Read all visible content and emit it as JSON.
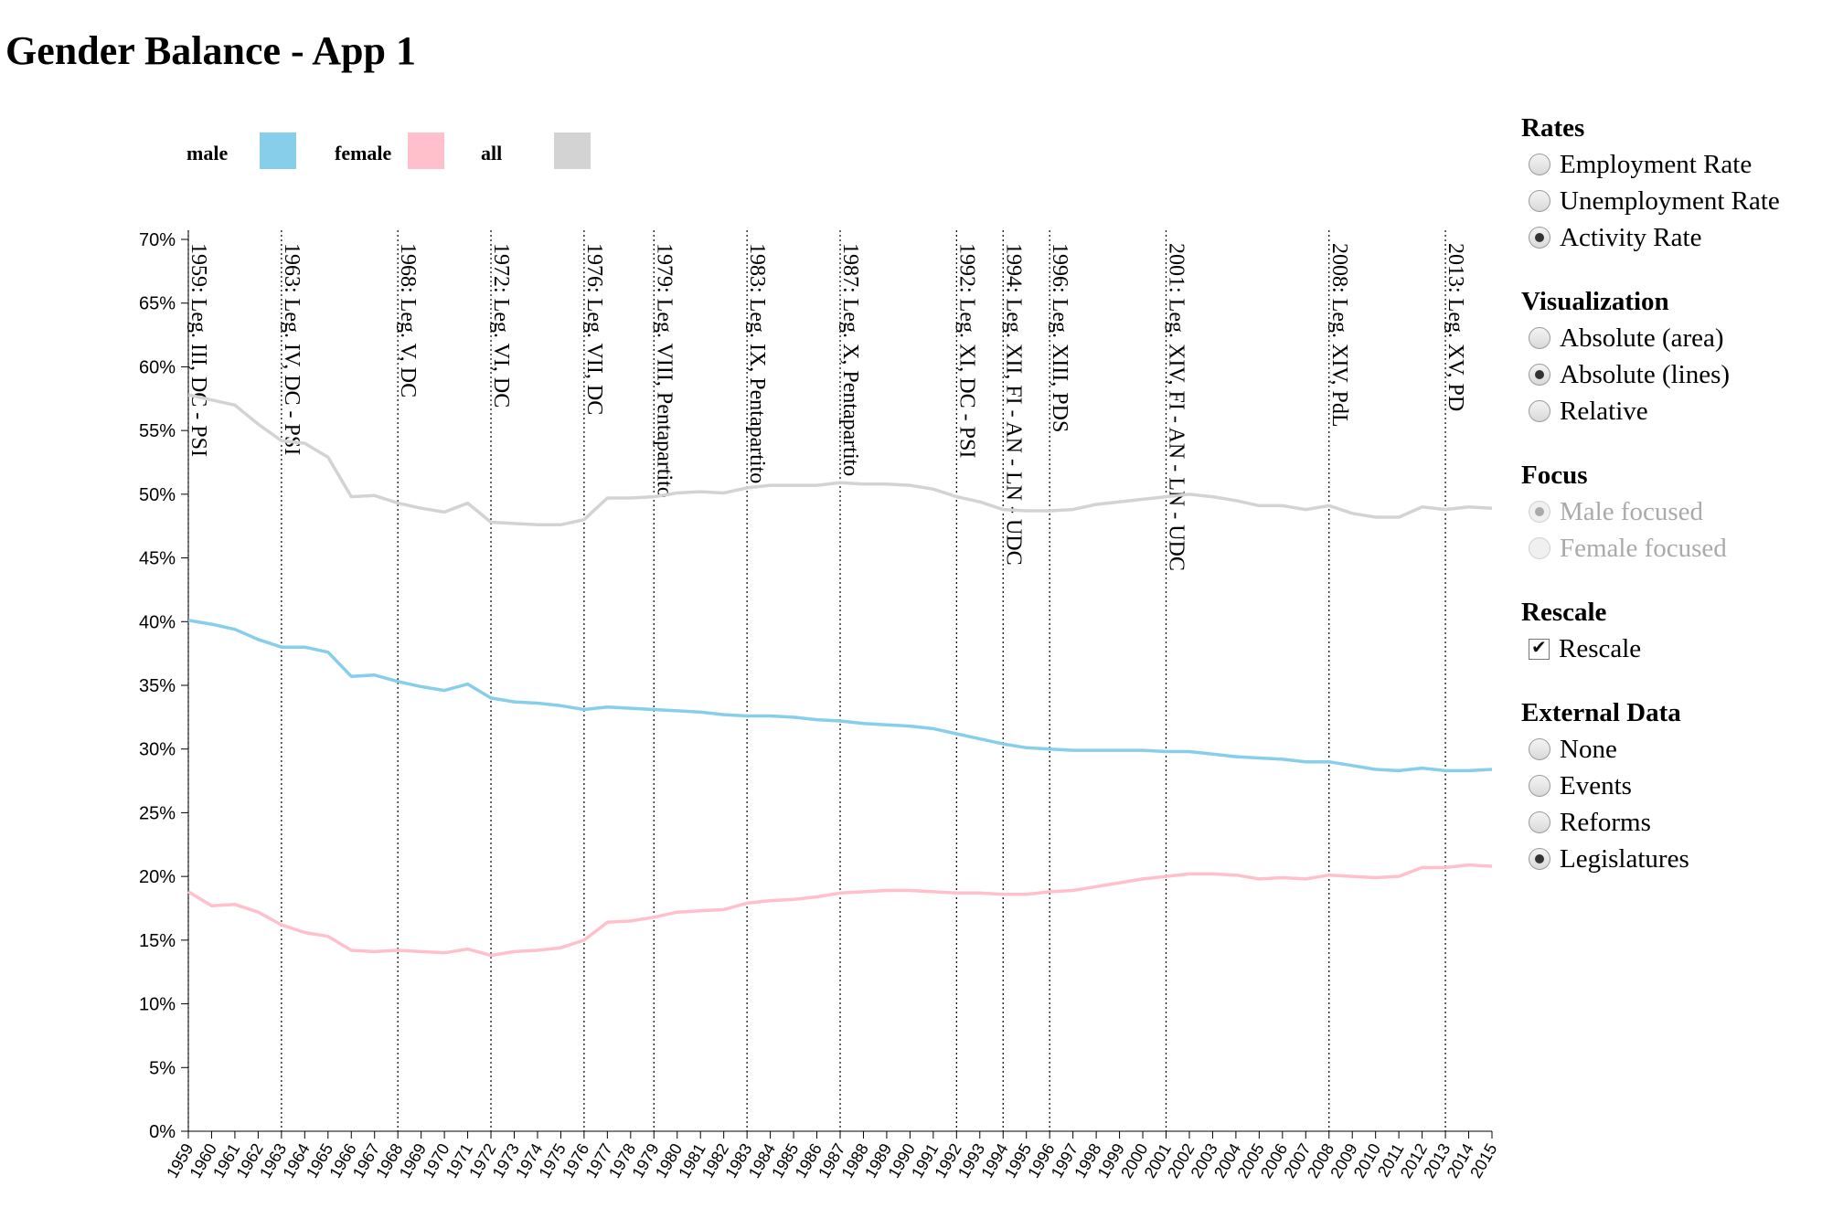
{
  "title": "Gender Balance - App 1",
  "controls": {
    "rates": {
      "title": "Rates",
      "options": [
        {
          "label": "Employment Rate",
          "checked": false,
          "disabled": false
        },
        {
          "label": "Unemployment Rate",
          "checked": false,
          "disabled": false
        },
        {
          "label": "Activity Rate",
          "checked": true,
          "disabled": false
        }
      ]
    },
    "visualization": {
      "title": "Visualization",
      "options": [
        {
          "label": "Absolute (area)",
          "checked": false,
          "disabled": false
        },
        {
          "label": "Absolute (lines)",
          "checked": true,
          "disabled": false
        },
        {
          "label": "Relative",
          "checked": false,
          "disabled": false
        }
      ]
    },
    "focus": {
      "title": "Focus",
      "options": [
        {
          "label": "Male focused",
          "checked": true,
          "disabled": true
        },
        {
          "label": "Female focused",
          "checked": false,
          "disabled": true
        }
      ]
    },
    "rescale": {
      "title": "Rescale",
      "options": [
        {
          "label": "Rescale",
          "checked": true,
          "type": "checkbox"
        }
      ]
    },
    "external_data": {
      "title": "External Data",
      "options": [
        {
          "label": "None",
          "checked": false,
          "disabled": false
        },
        {
          "label": "Events",
          "checked": false,
          "disabled": false
        },
        {
          "label": "Reforms",
          "checked": false,
          "disabled": false
        },
        {
          "label": "Legislatures",
          "checked": true,
          "disabled": false
        }
      ]
    }
  },
  "chart_data": {
    "type": "line",
    "x": [
      1959,
      1960,
      1961,
      1962,
      1963,
      1964,
      1965,
      1966,
      1967,
      1968,
      1969,
      1970,
      1971,
      1972,
      1973,
      1974,
      1975,
      1976,
      1977,
      1978,
      1979,
      1980,
      1981,
      1982,
      1983,
      1984,
      1985,
      1986,
      1987,
      1988,
      1989,
      1990,
      1991,
      1992,
      1993,
      1994,
      1995,
      1996,
      1997,
      1998,
      1999,
      2000,
      2001,
      2002,
      2003,
      2004,
      2005,
      2006,
      2007,
      2008,
      2009,
      2010,
      2011,
      2012,
      2013,
      2014,
      2015
    ],
    "ylim": [
      0,
      70
    ],
    "yticks": [
      "0%",
      "5%",
      "10%",
      "15%",
      "20%",
      "25%",
      "30%",
      "35%",
      "40%",
      "45%",
      "50%",
      "55%",
      "60%",
      "65%",
      "70%"
    ],
    "legend": [
      {
        "name": "male",
        "color": "#87ceeb"
      },
      {
        "name": "female",
        "color": "#ffc0cb"
      },
      {
        "name": "all",
        "color": "#d3d3d3"
      }
    ],
    "series": [
      {
        "name": "all",
        "color": "#d3d3d3",
        "values": [
          57.8,
          57.4,
          57.0,
          55.5,
          54.2,
          54.0,
          52.9,
          49.8,
          49.9,
          49.3,
          48.9,
          48.6,
          49.3,
          47.8,
          47.7,
          47.6,
          47.6,
          48.0,
          49.7,
          49.7,
          49.8,
          50.1,
          50.2,
          50.1,
          50.5,
          50.7,
          50.7,
          50.7,
          50.9,
          50.8,
          50.8,
          50.7,
          50.4,
          49.8,
          49.4,
          48.8,
          48.7,
          48.7,
          48.8,
          49.2,
          49.4,
          49.6,
          49.8,
          50.0,
          49.8,
          49.5,
          49.1,
          49.1,
          48.8,
          49.1,
          48.5,
          48.2,
          48.2,
          49.0,
          48.8,
          49.0,
          48.9
        ]
      },
      {
        "name": "male",
        "color": "#87ceeb",
        "values": [
          40.1,
          39.8,
          39.4,
          38.6,
          38.0,
          38.0,
          37.6,
          35.7,
          35.8,
          35.3,
          34.9,
          34.6,
          35.1,
          34.0,
          33.7,
          33.6,
          33.4,
          33.1,
          33.3,
          33.2,
          33.1,
          33.0,
          32.9,
          32.7,
          32.6,
          32.6,
          32.5,
          32.3,
          32.2,
          32.0,
          31.9,
          31.8,
          31.6,
          31.2,
          30.8,
          30.4,
          30.1,
          30.0,
          29.9,
          29.9,
          29.9,
          29.9,
          29.8,
          29.8,
          29.6,
          29.4,
          29.3,
          29.2,
          29.0,
          29.0,
          28.7,
          28.4,
          28.3,
          28.5,
          28.3,
          28.3,
          28.4
        ]
      },
      {
        "name": "female",
        "color": "#ffc0cb",
        "values": [
          18.8,
          17.7,
          17.8,
          17.2,
          16.2,
          15.6,
          15.3,
          14.2,
          14.1,
          14.2,
          14.1,
          14.0,
          14.3,
          13.8,
          14.1,
          14.2,
          14.4,
          15.0,
          16.4,
          16.5,
          16.8,
          17.2,
          17.3,
          17.4,
          17.9,
          18.1,
          18.2,
          18.4,
          18.7,
          18.8,
          18.9,
          18.9,
          18.8,
          18.7,
          18.7,
          18.6,
          18.6,
          18.8,
          18.9,
          19.2,
          19.5,
          19.8,
          20.0,
          20.2,
          20.2,
          20.1,
          19.8,
          19.9,
          19.8,
          20.1,
          20.0,
          19.9,
          20.0,
          20.7,
          20.7,
          20.9,
          20.8
        ]
      }
    ],
    "events": [
      {
        "year": 1959,
        "label": "1959: Leg. III, DC - PSI"
      },
      {
        "year": 1963,
        "label": "1963: Leg. IV, DC - PSI"
      },
      {
        "year": 1968,
        "label": "1968: Leg. V, DC"
      },
      {
        "year": 1972,
        "label": "1972: Leg. VI, DC"
      },
      {
        "year": 1976,
        "label": "1976: Leg. VII, DC"
      },
      {
        "year": 1979,
        "label": "1979: Leg. VIII, Pentapartito"
      },
      {
        "year": 1983,
        "label": "1983: Leg. IX, Pentapartito"
      },
      {
        "year": 1987,
        "label": "1987: Leg. X, Pentapartito"
      },
      {
        "year": 1992,
        "label": "1992: Leg. XI, DC - PSI"
      },
      {
        "year": 1994,
        "label": "1994: Leg. XII, FI - AN - LN - UDC"
      },
      {
        "year": 1996,
        "label": "1996: Leg. XIII, PDS"
      },
      {
        "year": 2001,
        "label": "2001: Leg. XIV, FI - AN - LN - UDC"
      },
      {
        "year": 2008,
        "label": "2008: Leg. XIV, PdL"
      },
      {
        "year": 2013,
        "label": "2013: Leg. XV, PD"
      }
    ]
  }
}
